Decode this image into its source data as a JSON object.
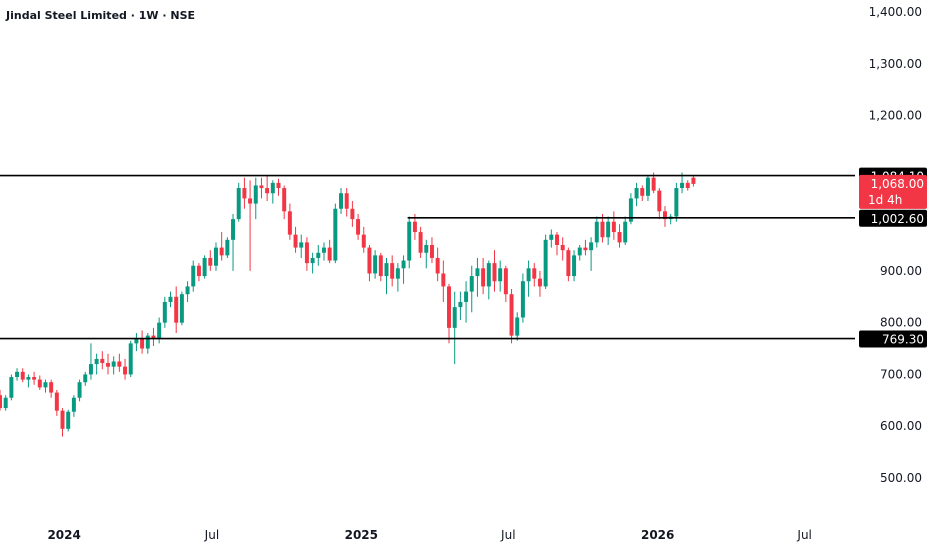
{
  "title": "Jindal Steel Limited · 1W · NSE",
  "colors": {
    "up": "#089981",
    "down": "#f23645",
    "text": "#131722",
    "line": "#000000",
    "label_bg": "#000000",
    "label_fg": "#ffffff"
  },
  "chart_data": {
    "type": "candlestick",
    "interval": "1W",
    "title": "Jindal Steel Limited · 1W · NSE",
    "ylim": [
      440,
      1420
    ],
    "y_ticks": [
      500,
      600,
      700,
      800,
      900,
      1200,
      1300,
      1400
    ],
    "y_tick_labels": [
      "500.00",
      "600.00",
      "700.00",
      "800.00",
      "900.00",
      "1,200.00",
      "1,300.00",
      "1,400.00"
    ],
    "x_range": [
      "2023-10-14",
      "2026-09-01"
    ],
    "x_ticks": [
      {
        "date": "2024-01-01",
        "label": "2024",
        "bold": true
      },
      {
        "date": "2024-07-01",
        "label": "Jul",
        "bold": false
      },
      {
        "date": "2025-01-01",
        "label": "2025",
        "bold": true
      },
      {
        "date": "2025-07-01",
        "label": "Jul",
        "bold": false
      },
      {
        "date": "2026-01-01",
        "label": "2026",
        "bold": true
      },
      {
        "date": "2026-07-01",
        "label": "Jul",
        "bold": false
      }
    ],
    "horizontal_lines": [
      {
        "price": 1084.1,
        "label": "1,084.10",
        "from": "2023-10-14"
      },
      {
        "price": 1002.6,
        "label": "1,002.60",
        "from": "2025-02-27"
      },
      {
        "price": 769.3,
        "label": "769.30",
        "from": "2023-10-14"
      }
    ],
    "last_price": {
      "price": 1068.0,
      "label": "1,068.00",
      "countdown": "1d 4h"
    },
    "start_date": "2023-10-14",
    "candles": [
      [
        660,
        670,
        630,
        635
      ],
      [
        635,
        660,
        630,
        655
      ],
      [
        655,
        700,
        650,
        695
      ],
      [
        695,
        712,
        688,
        705
      ],
      [
        705,
        712,
        685,
        690
      ],
      [
        690,
        700,
        675,
        695
      ],
      [
        695,
        705,
        680,
        690
      ],
      [
        690,
        698,
        670,
        675
      ],
      [
        675,
        690,
        665,
        685
      ],
      [
        685,
        690,
        655,
        665
      ],
      [
        665,
        670,
        620,
        630
      ],
      [
        630,
        635,
        580,
        595
      ],
      [
        595,
        632,
        590,
        628
      ],
      [
        628,
        660,
        618,
        655
      ],
      [
        655,
        690,
        648,
        685
      ],
      [
        685,
        705,
        678,
        700
      ],
      [
        700,
        760,
        690,
        720
      ],
      [
        720,
        740,
        700,
        730
      ],
      [
        730,
        745,
        710,
        722
      ],
      [
        722,
        740,
        700,
        715
      ],
      [
        715,
        735,
        700,
        725
      ],
      [
        725,
        740,
        705,
        715
      ],
      [
        715,
        730,
        690,
        700
      ],
      [
        700,
        765,
        695,
        760
      ],
      [
        760,
        780,
        745,
        770
      ],
      [
        770,
        785,
        740,
        750
      ],
      [
        750,
        780,
        740,
        775
      ],
      [
        775,
        790,
        755,
        770
      ],
      [
        770,
        810,
        760,
        800
      ],
      [
        800,
        850,
        790,
        840
      ],
      [
        840,
        860,
        830,
        850
      ],
      [
        850,
        870,
        780,
        800
      ],
      [
        800,
        860,
        795,
        855
      ],
      [
        855,
        880,
        840,
        870
      ],
      [
        870,
        920,
        860,
        910
      ],
      [
        910,
        915,
        880,
        890
      ],
      [
        890,
        930,
        885,
        925
      ],
      [
        925,
        940,
        900,
        910
      ],
      [
        910,
        955,
        900,
        945
      ],
      [
        945,
        975,
        920,
        930
      ],
      [
        930,
        965,
        925,
        960
      ],
      [
        960,
        1010,
        900,
        1000
      ],
      [
        1000,
        1070,
        995,
        1060
      ],
      [
        1060,
        1080,
        1020,
        1040
      ],
      [
        1040,
        1075,
        900,
        1030
      ],
      [
        1030,
        1080,
        1000,
        1065
      ],
      [
        1065,
        1080,
        1040,
        1060
      ],
      [
        1060,
        1085,
        1035,
        1050
      ],
      [
        1050,
        1075,
        1030,
        1070
      ],
      [
        1070,
        1078,
        1045,
        1060
      ],
      [
        1060,
        1065,
        1000,
        1015
      ],
      [
        1015,
        1030,
        960,
        970
      ],
      [
        970,
        985,
        935,
        945
      ],
      [
        945,
        970,
        925,
        955
      ],
      [
        955,
        965,
        900,
        915
      ],
      [
        915,
        935,
        895,
        925
      ],
      [
        925,
        950,
        910,
        935
      ],
      [
        935,
        955,
        920,
        945
      ],
      [
        945,
        960,
        915,
        920
      ],
      [
        920,
        1030,
        915,
        1020
      ],
      [
        1020,
        1060,
        1010,
        1050
      ],
      [
        1050,
        1060,
        1005,
        1020
      ],
      [
        1020,
        1035,
        985,
        1000
      ],
      [
        1000,
        1010,
        960,
        970
      ],
      [
        970,
        985,
        935,
        945
      ],
      [
        945,
        950,
        880,
        895
      ],
      [
        895,
        940,
        885,
        930
      ],
      [
        930,
        935,
        880,
        890
      ],
      [
        890,
        925,
        855,
        915
      ],
      [
        915,
        930,
        870,
        885
      ],
      [
        885,
        915,
        860,
        905
      ],
      [
        905,
        930,
        875,
        920
      ],
      [
        920,
        1005,
        905,
        995
      ],
      [
        995,
        1010,
        960,
        975
      ],
      [
        975,
        985,
        925,
        935
      ],
      [
        935,
        960,
        905,
        950
      ],
      [
        950,
        965,
        915,
        925
      ],
      [
        925,
        945,
        880,
        895
      ],
      [
        895,
        920,
        840,
        870
      ],
      [
        870,
        875,
        760,
        790
      ],
      [
        790,
        860,
        720,
        830
      ],
      [
        830,
        860,
        805,
        840
      ],
      [
        840,
        880,
        800,
        860
      ],
      [
        860,
        910,
        820,
        890
      ],
      [
        890,
        925,
        850,
        905
      ],
      [
        905,
        925,
        855,
        870
      ],
      [
        870,
        920,
        845,
        915
      ],
      [
        915,
        940,
        860,
        880
      ],
      [
        880,
        920,
        860,
        905
      ],
      [
        905,
        910,
        840,
        855
      ],
      [
        855,
        865,
        760,
        775
      ],
      [
        775,
        820,
        765,
        810
      ],
      [
        810,
        895,
        800,
        880
      ],
      [
        880,
        920,
        850,
        905
      ],
      [
        905,
        915,
        870,
        885
      ],
      [
        885,
        900,
        850,
        870
      ],
      [
        870,
        970,
        865,
        960
      ],
      [
        960,
        980,
        945,
        970
      ],
      [
        970,
        975,
        930,
        950
      ],
      [
        950,
        965,
        920,
        940
      ],
      [
        940,
        945,
        880,
        890
      ],
      [
        890,
        940,
        880,
        930
      ],
      [
        930,
        950,
        920,
        945
      ],
      [
        945,
        960,
        930,
        940
      ],
      [
        940,
        965,
        900,
        955
      ],
      [
        955,
        1005,
        945,
        995
      ],
      [
        995,
        1010,
        955,
        965
      ],
      [
        965,
        1005,
        950,
        995
      ],
      [
        995,
        1015,
        960,
        975
      ],
      [
        975,
        990,
        945,
        955
      ],
      [
        955,
        1005,
        950,
        995
      ],
      [
        995,
        1050,
        990,
        1040
      ],
      [
        1040,
        1070,
        1025,
        1060
      ],
      [
        1060,
        1065,
        1035,
        1045
      ],
      [
        1045,
        1085,
        1035,
        1080
      ],
      [
        1080,
        1090,
        1050,
        1055
      ],
      [
        1055,
        1060,
        1000,
        1015
      ],
      [
        1015,
        1025,
        985,
        1000
      ],
      [
        1000,
        1010,
        990,
        1005
      ],
      [
        1005,
        1070,
        995,
        1060
      ],
      [
        1060,
        1090,
        1050,
        1070
      ],
      [
        1070,
        1075,
        1055,
        1060
      ],
      [
        1080,
        1083,
        1063,
        1068
      ]
    ]
  }
}
